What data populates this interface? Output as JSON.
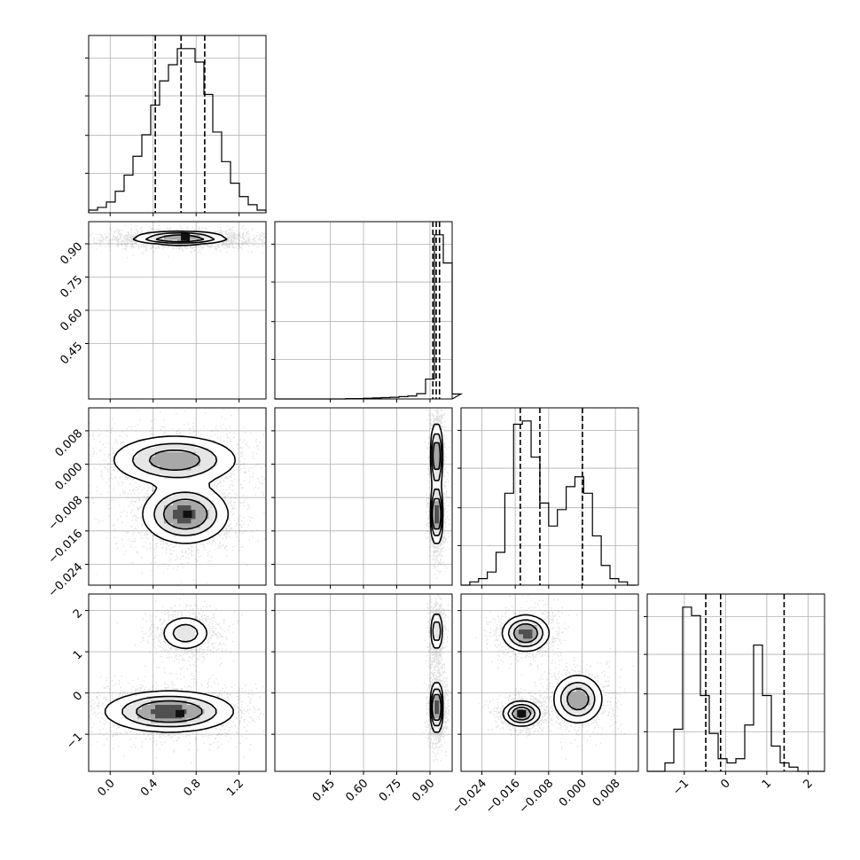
{
  "chart_data": {
    "type": "corner",
    "parameters": [
      {
        "range": [
          -0.2,
          1.45
        ],
        "ticks": [
          0.0,
          0.4,
          0.8,
          1.2
        ],
        "tick_labels": [
          "0.0",
          "0.4",
          "0.8",
          "1.2"
        ]
      },
      {
        "range": [
          0.2,
          1.0
        ],
        "ticks": [
          0.45,
          0.6,
          0.75,
          0.9
        ],
        "tick_labels": [
          "0.45",
          "0.60",
          "0.75",
          "0.90"
        ]
      },
      {
        "range": [
          -0.029,
          0.0135
        ],
        "ticks": [
          -0.024,
          -0.016,
          -0.008,
          0.0,
          0.008
        ],
        "tick_labels": [
          "−0.024",
          "−0.016",
          "−0.008",
          "0.000",
          "0.008"
        ]
      },
      {
        "range": [
          -1.9,
          2.4
        ],
        "ticks": [
          -1,
          0,
          1,
          2
        ],
        "tick_labels": [
          "−1",
          "0",
          "1",
          "2"
        ]
      }
    ],
    "quantiles": [
      [
        0.42,
        0.66,
        0.88
      ],
      [
        0.913,
        0.928,
        0.943
      ],
      [
        -0.0148,
        -0.0101,
        0.0001
      ],
      [
        -0.48,
        -0.12,
        1.42
      ]
    ],
    "histograms": [
      {
        "bins_start": -0.2,
        "bin_width": 0.0825,
        "counts": [
          1,
          2,
          4,
          8,
          14,
          21,
          29,
          40,
          49,
          55,
          61,
          61,
          56,
          44,
          30,
          19,
          11,
          6,
          3,
          1
        ]
      },
      {
        "bins_start": 0.2,
        "bin_width": 0.04,
        "counts": [
          0,
          0,
          0,
          0,
          0,
          0,
          0,
          0,
          0.2,
          0.2,
          0.4,
          0.6,
          0.8,
          1.0,
          1.4,
          1.8,
          3.2,
          12,
          99,
          82,
          3
        ]
      },
      {
        "bins_start": -0.029,
        "bin_width": 0.0021,
        "counts": [
          0,
          1,
          2,
          4,
          10,
          28,
          49,
          50,
          39,
          25,
          18,
          23,
          30,
          33,
          28,
          15,
          6,
          2,
          1,
          0
        ]
      },
      {
        "bins_start": -1.9,
        "bin_width": 0.215,
        "counts": [
          0,
          0,
          2,
          10,
          39,
          37,
          18,
          9,
          3,
          2,
          3,
          11,
          30,
          18,
          6,
          2,
          1,
          0,
          0,
          0
        ]
      }
    ],
    "pairs": [
      {
        "x": 0,
        "y": 1,
        "clusters": [
          {
            "cx": 0.65,
            "cy": 0.925,
            "sx": 0.22,
            "sy": 0.014,
            "w": 1.0,
            "peak": [
              0.7,
              0.93
            ]
          }
        ]
      },
      {
        "x": 0,
        "y": 2,
        "clusters": [
          {
            "cx": 0.7,
            "cy": -0.012,
            "sx": 0.2,
            "sy": 0.0035,
            "w": 0.55,
            "peak": [
              0.72,
              -0.012
            ]
          },
          {
            "cx": 0.6,
            "cy": 0.001,
            "sx": 0.3,
            "sy": 0.003,
            "w": 0.45
          }
        ]
      },
      {
        "x": 1,
        "y": 2,
        "clusters": [
          {
            "cx": 0.93,
            "cy": -0.012,
            "sx": 0.012,
            "sy": 0.0035,
            "w": 0.55
          },
          {
            "cx": 0.93,
            "cy": 0.002,
            "sx": 0.012,
            "sy": 0.004,
            "w": 0.45
          }
        ]
      },
      {
        "x": 0,
        "y": 3,
        "clusters": [
          {
            "cx": 0.7,
            "cy": 1.45,
            "sx": 0.12,
            "sy": 0.22,
            "w": 0.35
          },
          {
            "cx": 0.55,
            "cy": -0.45,
            "sx": 0.3,
            "sy": 0.25,
            "w": 0.65,
            "peak": [
              0.65,
              -0.5
            ]
          }
        ]
      },
      {
        "x": 1,
        "y": 3,
        "clusters": [
          {
            "cx": 0.93,
            "cy": 1.5,
            "sx": 0.012,
            "sy": 0.25,
            "w": 0.35
          },
          {
            "cx": 0.93,
            "cy": -0.35,
            "sx": 0.013,
            "sy": 0.3,
            "w": 0.65
          }
        ]
      },
      {
        "x": 2,
        "y": 3,
        "clusters": [
          {
            "cx": -0.0135,
            "cy": 1.45,
            "sx": 0.0028,
            "sy": 0.22,
            "w": 0.35
          },
          {
            "cx": -0.0145,
            "cy": -0.5,
            "sx": 0.0022,
            "sy": 0.15,
            "w": 0.35,
            "peak": [
              -0.0145,
              -0.5
            ]
          },
          {
            "cx": -0.001,
            "cy": -0.15,
            "sx": 0.003,
            "sy": 0.3,
            "w": 0.3
          }
        ]
      }
    ],
    "grid": true
  }
}
